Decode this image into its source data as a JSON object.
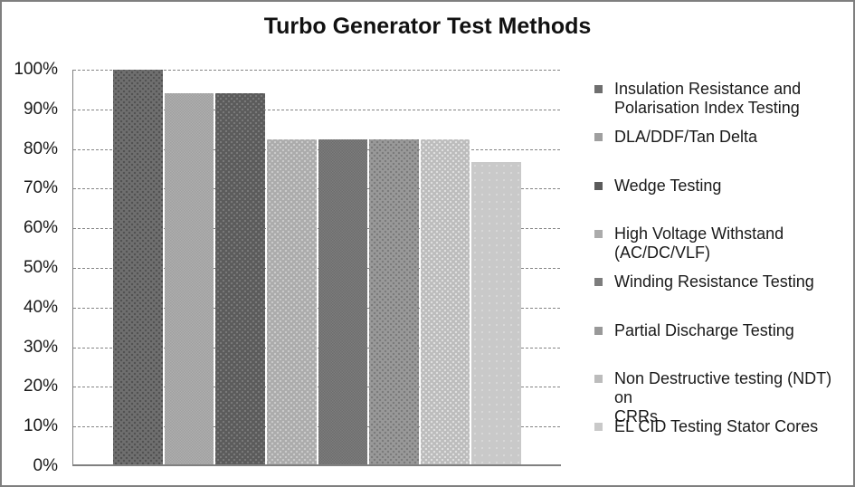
{
  "chart_data": {
    "type": "bar",
    "title": "Turbo Generator Test Methods",
    "xlabel": "",
    "ylabel": "",
    "value_unit": "%",
    "grid": true,
    "gridline_style": "dashed",
    "legend_position": "right",
    "y_axis": {
      "min": 0,
      "max": 100,
      "tick_step": 10,
      "tick_labels": [
        "100%",
        "90%",
        "80%",
        "70%",
        "60%",
        "50%",
        "40%",
        "30%",
        "20%",
        "10%",
        "0%"
      ]
    },
    "categories": [
      "Insulation Resistance and Polarisation Index Testing",
      "DLA/DDF/Tan Delta",
      "Wedge Testing",
      "High Voltage Withstand (AC/DC/VLF)",
      "Winding Resistance Testing",
      "Partial Discharge Testing",
      "Non Destructive testing (NDT) on CRRs",
      "EL CID Testing Stator Cores"
    ],
    "values": [
      100,
      94.1,
      94.1,
      82.4,
      82.4,
      82.4,
      82.4,
      76.5
    ],
    "series": [
      {
        "name": "Insulation Resistance and Polarisation Index Testing",
        "legend_lines": [
          "Insulation Resistance and",
          "Polarisation Index Testing"
        ],
        "value": 100,
        "color": "#6f6f6f",
        "dot_color": "#515151",
        "pattern": "dots"
      },
      {
        "name": "DLA/DDF/Tan Delta",
        "legend_lines": [
          "DLA/DDF/Tan Delta"
        ],
        "value": 94.1,
        "color": "#9f9f9f",
        "dot_color": "#afafaf",
        "pattern": "fine"
      },
      {
        "name": "Wedge Testing",
        "legend_lines": [
          "Wedge Testing"
        ],
        "value": 94.1,
        "color": "#5b5b5b",
        "dot_color": "#7a7a7a",
        "pattern": "dots"
      },
      {
        "name": "High Voltage Withstand (AC/DC/VLF)",
        "legend_lines": [
          "High Voltage Withstand",
          "(AC/DC/VLF)"
        ],
        "value": 82.4,
        "color": "#ababab",
        "dot_color": "#cbcbcb",
        "pattern": "dots"
      },
      {
        "name": "Winding Resistance Testing",
        "legend_lines": [
          "Winding Resistance Testing"
        ],
        "value": 82.4,
        "color": "#7d7d7d",
        "dot_color": "#6d6d6d",
        "pattern": "fine"
      },
      {
        "name": "Partial Discharge Testing",
        "legend_lines": [
          "Partial Discharge Testing"
        ],
        "value": 82.4,
        "color": "#999999",
        "dot_color": "#7a7a7a",
        "pattern": "dots"
      },
      {
        "name": "Non Destructive testing (NDT) on CRRs",
        "legend_lines": [
          "Non Destructive testing (NDT) on",
          "CRRs"
        ],
        "value": 82.4,
        "color": "#bcbcbc",
        "dot_color": "#e0e0e0",
        "pattern": "dots"
      },
      {
        "name": "EL CID Testing Stator Cores",
        "legend_lines": [
          "EL CID Testing Stator Cores"
        ],
        "value": 76.5,
        "color": "#c9c9c9",
        "dot_color": "#d8d8d8",
        "pattern": "sparse"
      }
    ],
    "colors": {
      "background": "#ffffff",
      "border": "#7f7f7f",
      "axis": "#808080",
      "gridline": "#848484",
      "text": "#1a1a1a"
    }
  }
}
